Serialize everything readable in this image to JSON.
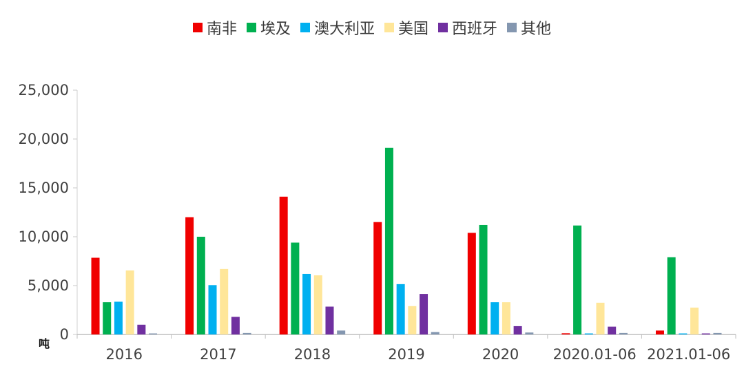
{
  "chart_data": {
    "type": "bar",
    "categories": [
      "2016",
      "2017",
      "2018",
      "2019",
      "2020",
      "2020.01-06",
      "2021.01-06"
    ],
    "series": [
      {
        "name": "南非",
        "color": "#f00000",
        "values": [
          7850,
          12000,
          14100,
          11500,
          10400,
          120,
          400
        ]
      },
      {
        "name": "埃及",
        "color": "#00b050",
        "values": [
          3300,
          10000,
          9400,
          19100,
          11200,
          11150,
          7900
        ]
      },
      {
        "name": "澳大利亚",
        "color": "#00b0f0",
        "values": [
          3350,
          5050,
          6200,
          5150,
          3300,
          100,
          100
        ]
      },
      {
        "name": "美国",
        "color": "#ffe699",
        "values": [
          6550,
          6700,
          6050,
          2900,
          3300,
          3250,
          2750
        ]
      },
      {
        "name": "西班牙",
        "color": "#7030a0",
        "values": [
          1000,
          1800,
          2850,
          4150,
          850,
          800,
          100
        ]
      },
      {
        "name": "其他",
        "color": "#8497b0",
        "values": [
          100,
          150,
          400,
          250,
          200,
          150,
          150
        ]
      }
    ],
    "ylim": [
      0,
      25000
    ],
    "yticks": [
      "0",
      "5,000",
      "10,000",
      "15,000",
      "20,000",
      "25,000"
    ],
    "ylabel": "吨",
    "legend_position": "top-center",
    "grid": false
  }
}
